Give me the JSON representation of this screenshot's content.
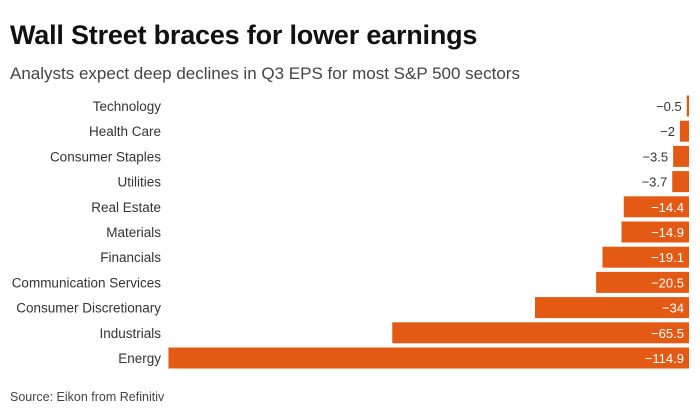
{
  "title": "Wall Street braces for lower earnings",
  "subtitle": "Analysts expect deep declines in Q3 EPS for most S&P 500 sectors",
  "source": "Source: Eikon from Refinitiv",
  "colors": {
    "bar": "#e35a14",
    "label_dark": "#333333",
    "label_light": "#ffffff"
  },
  "chart_data": {
    "type": "bar",
    "orientation": "horizontal",
    "title": "Wall Street braces for lower earnings",
    "subtitle": "Analysts expect deep declines in Q3 EPS for most S&P 500 sectors",
    "xlabel": "",
    "ylabel": "",
    "grid": false,
    "xlim": [
      -115,
      0
    ],
    "categories": [
      "Technology",
      "Health Care",
      "Consumer Staples",
      "Utilities",
      "Real Estate",
      "Materials",
      "Financials",
      "Communication Services",
      "Consumer Discretionary",
      "Industrials",
      "Energy"
    ],
    "values": [
      -0.5,
      -2,
      -3.5,
      -3.7,
      -14.4,
      -14.9,
      -19.1,
      -20.5,
      -34,
      -65.5,
      -114.9
    ],
    "value_labels": [
      "−0.5",
      "−2",
      "−3.5",
      "−3.7",
      "−14.4",
      "−14.9",
      "−19.1",
      "−20.5",
      "−34",
      "−65.5",
      "−114.9"
    ]
  }
}
